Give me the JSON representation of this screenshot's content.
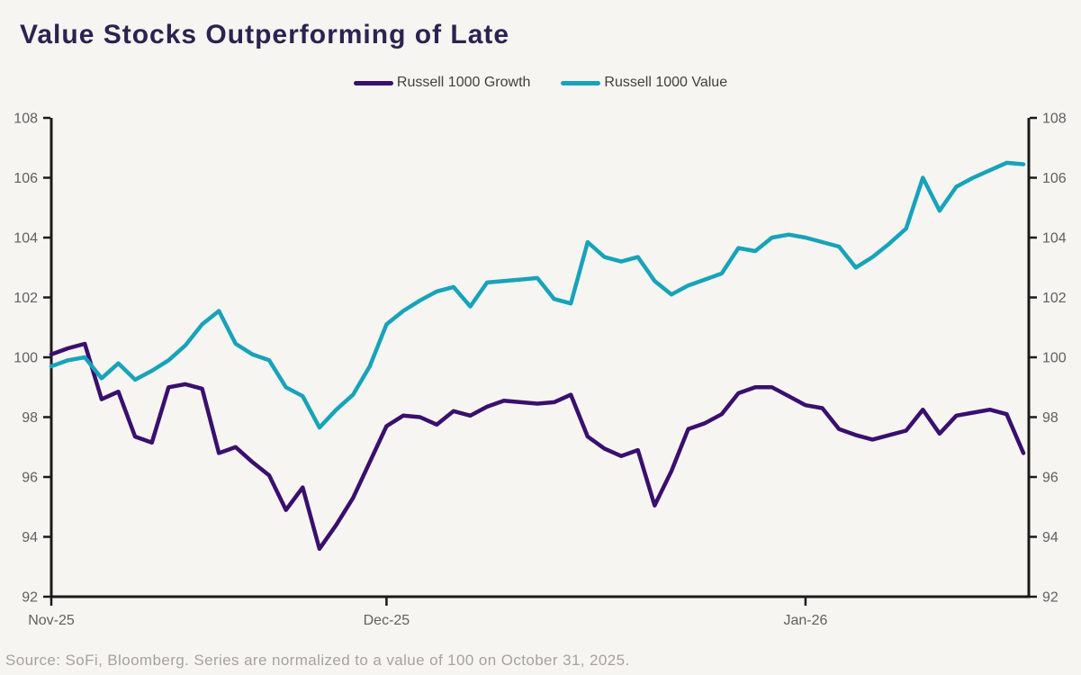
{
  "chart_data": {
    "type": "line",
    "title": "Value Stocks Outperforming of Late",
    "source_note": "Source: SoFi, Bloomberg. Series are normalized to a value of 100 on October 31, 2025.",
    "ylim": [
      92,
      108
    ],
    "y_ticks": [
      92,
      94,
      96,
      98,
      100,
      102,
      104,
      106,
      108
    ],
    "x_tick_labels": [
      {
        "label": "Nov-25",
        "index": 0
      },
      {
        "label": "Dec-25",
        "index": 20
      },
      {
        "label": "Jan-26",
        "index": 45
      }
    ],
    "grid": "off",
    "legend_position": "top-center",
    "axis_color": "#1a1a1a",
    "background_color": "#f7f5f1",
    "title_color": "#2b2350",
    "series": [
      {
        "name": "Russell 1000 Growth",
        "color": "#3a0f6e",
        "values": [
          100.1,
          100.3,
          100.45,
          98.6,
          98.85,
          97.35,
          97.15,
          99.0,
          99.1,
          98.95,
          96.8,
          97.0,
          96.5,
          96.05,
          94.9,
          95.65,
          93.6,
          94.4,
          95.3,
          96.5,
          97.7,
          98.05,
          98.0,
          97.75,
          98.2,
          98.05,
          98.35,
          98.55,
          98.5,
          98.45,
          98.5,
          98.75,
          97.35,
          96.95,
          96.7,
          96.9,
          95.05,
          96.2,
          97.6,
          97.8,
          98.1,
          98.8,
          99.0,
          99.0,
          98.7,
          98.4,
          98.3,
          97.6,
          97.4,
          97.25,
          97.4,
          97.55,
          98.25,
          97.45,
          98.05,
          98.15,
          98.25,
          98.1,
          96.8
        ]
      },
      {
        "name": "Russell 1000 Value",
        "color": "#17a3ba",
        "values": [
          99.7,
          99.9,
          100.0,
          99.3,
          99.8,
          99.25,
          99.55,
          99.9,
          100.4,
          101.1,
          101.55,
          100.45,
          100.1,
          99.9,
          99.0,
          98.7,
          97.65,
          98.25,
          98.75,
          99.7,
          101.1,
          101.55,
          101.9,
          102.2,
          102.35,
          101.7,
          102.5,
          102.55,
          102.6,
          102.65,
          101.95,
          101.8,
          103.85,
          103.35,
          103.2,
          103.35,
          102.55,
          102.1,
          102.4,
          102.6,
          102.8,
          103.65,
          103.55,
          104.0,
          104.1,
          104.0,
          103.85,
          103.7,
          103.0,
          103.35,
          103.8,
          104.3,
          106.0,
          104.9,
          105.7,
          106.0,
          106.25,
          106.5,
          106.45
        ]
      }
    ]
  }
}
